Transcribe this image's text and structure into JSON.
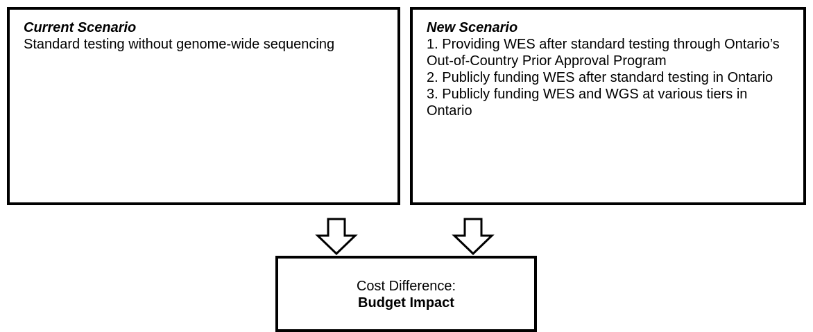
{
  "boxes": {
    "current": {
      "title": "Current Scenario",
      "lines": [
        "Standard testing without genome-wide sequencing"
      ]
    },
    "new": {
      "title": "New Scenario",
      "lines": [
        "1. Providing WES after standard testing through Ontario’s Out-of-Country Prior Approval Program",
        "2. Publicly funding WES after standard testing in Ontario",
        "3. Publicly funding WES and WGS at various tiers in Ontario"
      ]
    },
    "result": {
      "line1": "Cost Difference:",
      "line2": "Budget Impact"
    }
  }
}
